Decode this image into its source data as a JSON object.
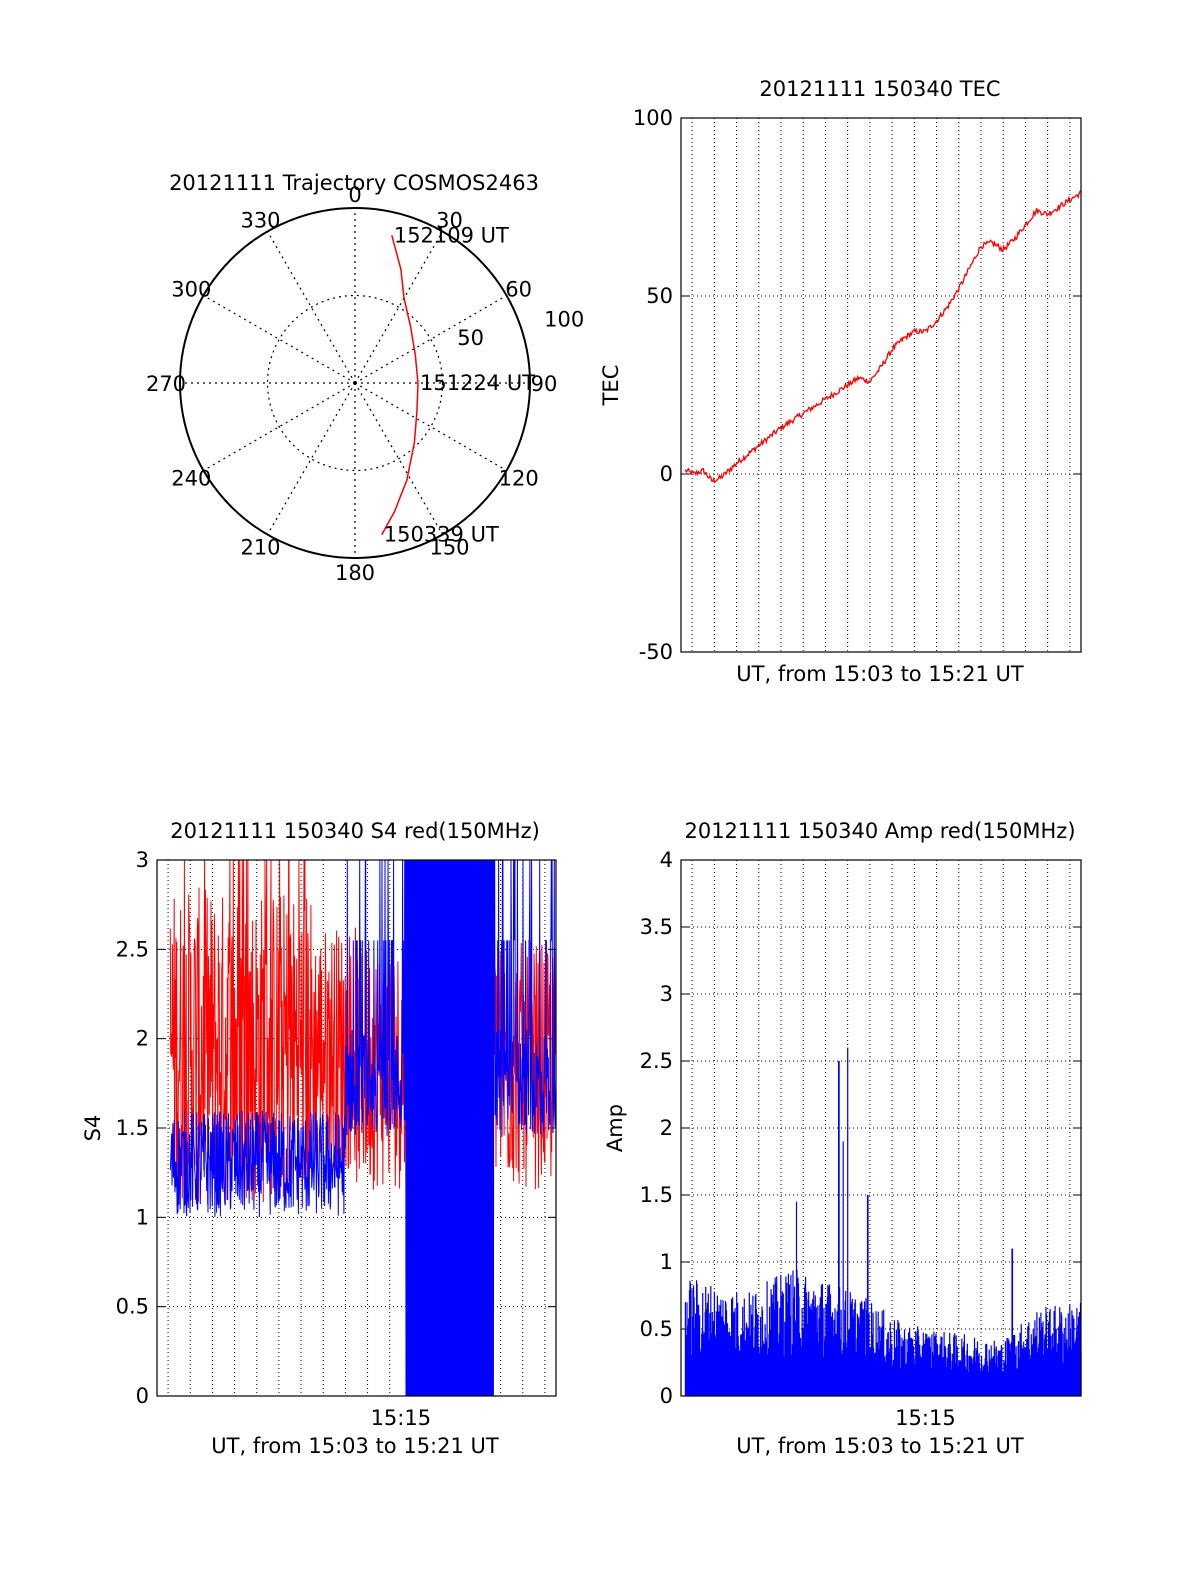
{
  "chart_data": [
    {
      "type": "polar",
      "title": "20121111 Trajectory COSMOS2463",
      "angle_labels": [
        "0",
        "30",
        "60",
        "90",
        "120",
        "150",
        "180",
        "210",
        "240",
        "270",
        "300",
        "330"
      ],
      "radius_labels": [
        "50",
        "100"
      ],
      "rmax": 100,
      "grid": true,
      "series": [
        {
          "color": "#ff0000",
          "points": [
            {
              "az": 14,
              "r": 87
            },
            {
              "az": 22,
              "r": 70
            },
            {
              "az": 30,
              "r": 56
            },
            {
              "az": 45,
              "r": 45
            },
            {
              "az": 65,
              "r": 38
            },
            {
              "az": 90,
              "r": 36
            },
            {
              "az": 115,
              "r": 39
            },
            {
              "az": 135,
              "r": 48
            },
            {
              "az": 152,
              "r": 63
            },
            {
              "az": 163,
              "r": 77
            },
            {
              "az": 170,
              "r": 88
            }
          ]
        }
      ],
      "annotations": [
        {
          "text": "152109 UT",
          "az": 14,
          "r": 87
        },
        {
          "text": "151224 UT",
          "az": 90,
          "r": 36
        },
        {
          "text": "150339 UT",
          "az": 170,
          "r": 88
        }
      ]
    },
    {
      "type": "line",
      "title": "20121111 150340 TEC",
      "xlabel": "UT, from 15:03 to 15:21 UT",
      "ylabel": "TEC",
      "xlim": [
        0,
        18
      ],
      "ylim": [
        -50,
        100
      ],
      "yticks": [
        "-50",
        "0",
        "50",
        "100"
      ],
      "grid": true,
      "series": [
        {
          "color": "#ff0000",
          "x": [
            0.2,
            0.6,
            1.0,
            1.4,
            1.8,
            2.5,
            3.5,
            4.5,
            5.5,
            6.5,
            7.5,
            8.0,
            8.5,
            9.0,
            9.5,
            10.0,
            10.5,
            11.0,
            11.5,
            12.0,
            12.5,
            13.0,
            13.5,
            14.0,
            14.5,
            15.0,
            15.5,
            16.0,
            16.5,
            17.0,
            17.5,
            18.0
          ],
          "y": [
            1,
            0,
            1,
            -2,
            -1,
            3,
            8,
            13,
            17,
            21,
            25,
            27,
            26,
            30,
            35,
            38,
            40,
            40,
            43,
            47,
            52,
            58,
            64,
            65,
            63,
            66,
            70,
            74,
            73,
            75,
            77,
            79
          ]
        }
      ]
    },
    {
      "type": "line",
      "title": "20121111 150340 S4 red(150MHz)",
      "xlabel": "UT, from 15:03 to 15:21 UT",
      "ylabel": "S4",
      "xlim": [
        0,
        18
      ],
      "ylim": [
        0,
        3
      ],
      "yticks": [
        "0",
        "0.5",
        "1",
        "1.5",
        "2",
        "2.5",
        "3"
      ],
      "xtick_label": "15:15",
      "xtick_value": 11,
      "grid": true,
      "series": [
        {
          "color": "#ff0000",
          "x_range": [
            0.6,
            18
          ],
          "base": 1.95,
          "spread": 0.45,
          "spike_max": 3.0
        },
        {
          "color": "#0000ff",
          "x_range": [
            0.6,
            18
          ],
          "base": 1.3,
          "spread": 0.3,
          "dropout_range": [
            11.2,
            15.2
          ],
          "rise_after": 8.5,
          "late_base": 1.75
        }
      ]
    },
    {
      "type": "bar",
      "title": "20121111 150340 Amp red(150MHz)",
      "xlabel": "UT, from 15:03 to 15:21 UT",
      "ylabel": "Amp",
      "xlim": [
        0,
        18
      ],
      "ylim": [
        0,
        4
      ],
      "yticks": [
        "0",
        "0.5",
        "1",
        "1.5",
        "2",
        "2.5",
        "3",
        "3.5",
        "4"
      ],
      "xtick_label": "15:15",
      "xtick_value": 11,
      "grid": true,
      "series": [
        {
          "color": "#0000ff",
          "peaks": [
            {
              "x": 5.2,
              "y": 1.45
            },
            {
              "x": 7.1,
              "y": 2.5
            },
            {
              "x": 7.5,
              "y": 2.6
            },
            {
              "x": 7.3,
              "y": 1.9
            },
            {
              "x": 8.4,
              "y": 1.5
            },
            {
              "x": 14.9,
              "y": 1.1
            }
          ],
          "envelope": [
            {
              "x": 0.2,
              "y": 0.75
            },
            {
              "x": 3.0,
              "y": 0.65
            },
            {
              "x": 5.0,
              "y": 0.8
            },
            {
              "x": 7.0,
              "y": 0.7
            },
            {
              "x": 8.5,
              "y": 0.6
            },
            {
              "x": 10.0,
              "y": 0.45
            },
            {
              "x": 12.0,
              "y": 0.4
            },
            {
              "x": 14.5,
              "y": 0.35
            },
            {
              "x": 16.0,
              "y": 0.55
            },
            {
              "x": 18.0,
              "y": 0.6
            }
          ]
        }
      ]
    }
  ]
}
